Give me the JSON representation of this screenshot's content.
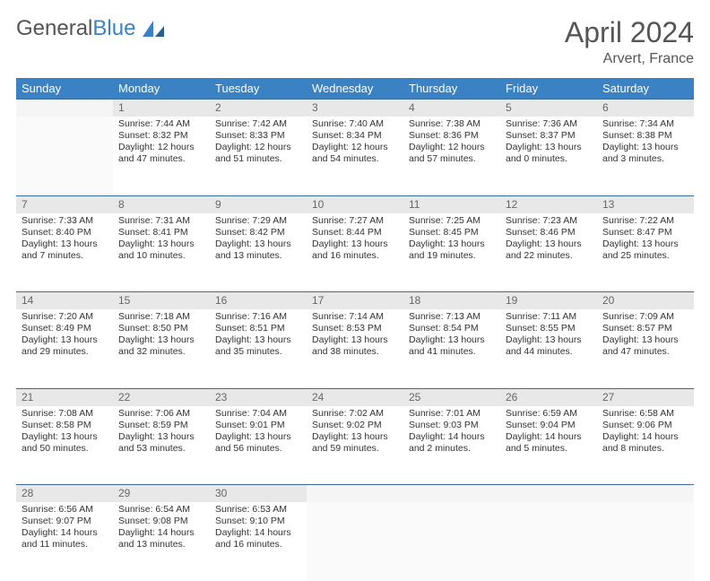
{
  "logo": {
    "text1": "General",
    "text2": "Blue"
  },
  "title": "April 2024",
  "location": "Arvert, France",
  "colors": {
    "header_bg": "#3b82c4",
    "header_text": "#ffffff",
    "daynum_bg": "#e8e8e8",
    "border": "#3b6a9a",
    "text": "#333333",
    "title_text": "#555555"
  },
  "daysOfWeek": [
    "Sunday",
    "Monday",
    "Tuesday",
    "Wednesday",
    "Thursday",
    "Friday",
    "Saturday"
  ],
  "startOffset": 1,
  "daysInMonth": 30,
  "days": {
    "1": {
      "sunrise": "7:44 AM",
      "sunset": "8:32 PM",
      "daylight": "12 hours and 47 minutes."
    },
    "2": {
      "sunrise": "7:42 AM",
      "sunset": "8:33 PM",
      "daylight": "12 hours and 51 minutes."
    },
    "3": {
      "sunrise": "7:40 AM",
      "sunset": "8:34 PM",
      "daylight": "12 hours and 54 minutes."
    },
    "4": {
      "sunrise": "7:38 AM",
      "sunset": "8:36 PM",
      "daylight": "12 hours and 57 minutes."
    },
    "5": {
      "sunrise": "7:36 AM",
      "sunset": "8:37 PM",
      "daylight": "13 hours and 0 minutes."
    },
    "6": {
      "sunrise": "7:34 AM",
      "sunset": "8:38 PM",
      "daylight": "13 hours and 3 minutes."
    },
    "7": {
      "sunrise": "7:33 AM",
      "sunset": "8:40 PM",
      "daylight": "13 hours and 7 minutes."
    },
    "8": {
      "sunrise": "7:31 AM",
      "sunset": "8:41 PM",
      "daylight": "13 hours and 10 minutes."
    },
    "9": {
      "sunrise": "7:29 AM",
      "sunset": "8:42 PM",
      "daylight": "13 hours and 13 minutes."
    },
    "10": {
      "sunrise": "7:27 AM",
      "sunset": "8:44 PM",
      "daylight": "13 hours and 16 minutes."
    },
    "11": {
      "sunrise": "7:25 AM",
      "sunset": "8:45 PM",
      "daylight": "13 hours and 19 minutes."
    },
    "12": {
      "sunrise": "7:23 AM",
      "sunset": "8:46 PM",
      "daylight": "13 hours and 22 minutes."
    },
    "13": {
      "sunrise": "7:22 AM",
      "sunset": "8:47 PM",
      "daylight": "13 hours and 25 minutes."
    },
    "14": {
      "sunrise": "7:20 AM",
      "sunset": "8:49 PM",
      "daylight": "13 hours and 29 minutes."
    },
    "15": {
      "sunrise": "7:18 AM",
      "sunset": "8:50 PM",
      "daylight": "13 hours and 32 minutes."
    },
    "16": {
      "sunrise": "7:16 AM",
      "sunset": "8:51 PM",
      "daylight": "13 hours and 35 minutes."
    },
    "17": {
      "sunrise": "7:14 AM",
      "sunset": "8:53 PM",
      "daylight": "13 hours and 38 minutes."
    },
    "18": {
      "sunrise": "7:13 AM",
      "sunset": "8:54 PM",
      "daylight": "13 hours and 41 minutes."
    },
    "19": {
      "sunrise": "7:11 AM",
      "sunset": "8:55 PM",
      "daylight": "13 hours and 44 minutes."
    },
    "20": {
      "sunrise": "7:09 AM",
      "sunset": "8:57 PM",
      "daylight": "13 hours and 47 minutes."
    },
    "21": {
      "sunrise": "7:08 AM",
      "sunset": "8:58 PM",
      "daylight": "13 hours and 50 minutes."
    },
    "22": {
      "sunrise": "7:06 AM",
      "sunset": "8:59 PM",
      "daylight": "13 hours and 53 minutes."
    },
    "23": {
      "sunrise": "7:04 AM",
      "sunset": "9:01 PM",
      "daylight": "13 hours and 56 minutes."
    },
    "24": {
      "sunrise": "7:02 AM",
      "sunset": "9:02 PM",
      "daylight": "13 hours and 59 minutes."
    },
    "25": {
      "sunrise": "7:01 AM",
      "sunset": "9:03 PM",
      "daylight": "14 hours and 2 minutes."
    },
    "26": {
      "sunrise": "6:59 AM",
      "sunset": "9:04 PM",
      "daylight": "14 hours and 5 minutes."
    },
    "27": {
      "sunrise": "6:58 AM",
      "sunset": "9:06 PM",
      "daylight": "14 hours and 8 minutes."
    },
    "28": {
      "sunrise": "6:56 AM",
      "sunset": "9:07 PM",
      "daylight": "14 hours and 11 minutes."
    },
    "29": {
      "sunrise": "6:54 AM",
      "sunset": "9:08 PM",
      "daylight": "14 hours and 13 minutes."
    },
    "30": {
      "sunrise": "6:53 AM",
      "sunset": "9:10 PM",
      "daylight": "14 hours and 16 minutes."
    }
  },
  "labels": {
    "sunrise": "Sunrise:",
    "sunset": "Sunset:",
    "daylight": "Daylight:"
  }
}
